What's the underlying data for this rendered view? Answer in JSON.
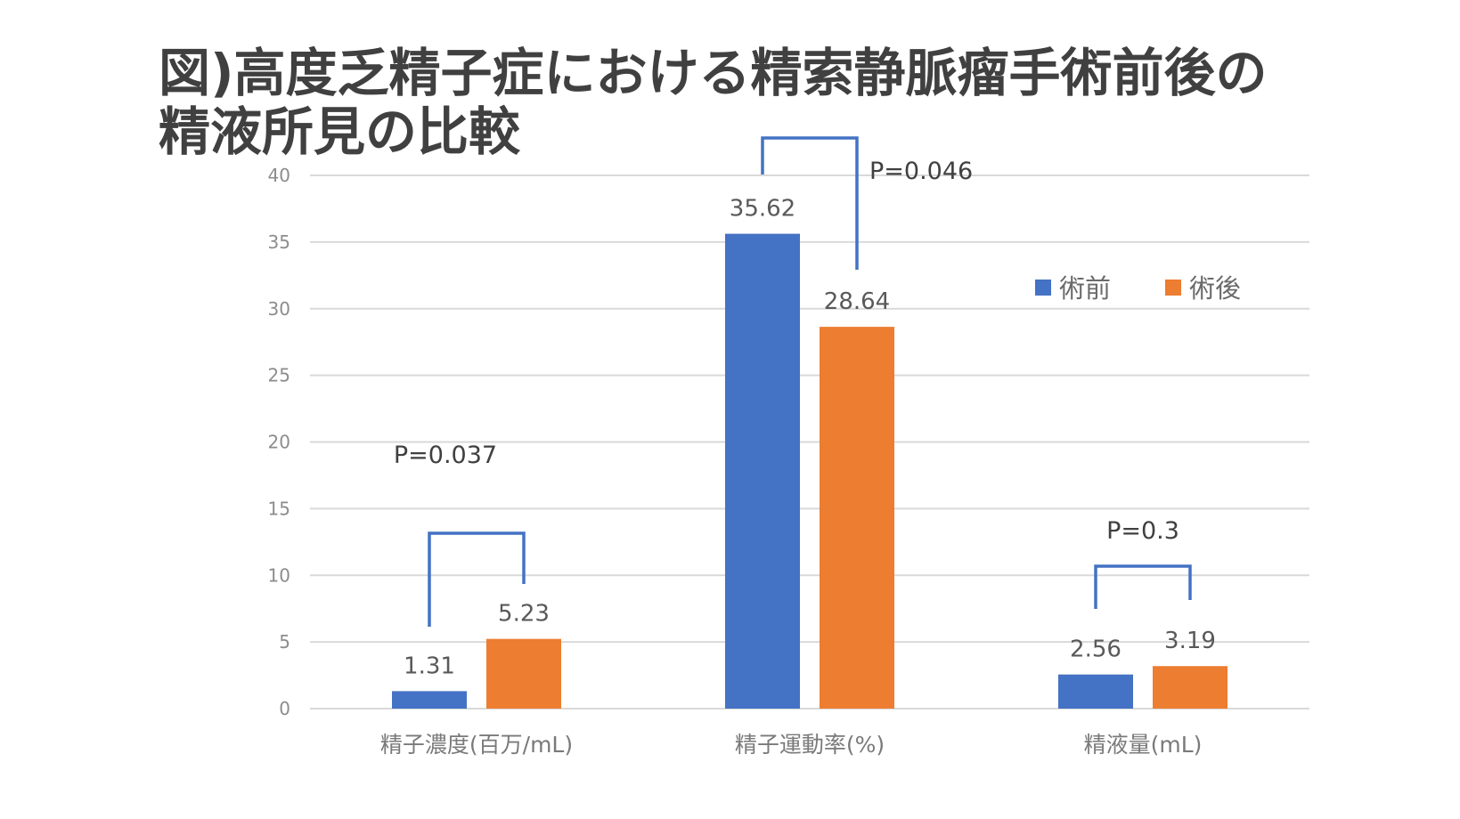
{
  "chart_data": {
    "type": "bar",
    "title_lines": [
      "図)高度乏精子症における精索静脈瘤手術前後の",
      "精液所見の比較"
    ],
    "categories": [
      "精子濃度(百万/mL)",
      "精子運動率(%)",
      "精液量(mL)"
    ],
    "series": [
      {
        "name": "術前",
        "values": [
          1.31,
          35.62,
          2.56
        ],
        "labels": [
          "1.31",
          "35.62",
          "2.56"
        ],
        "color": "#4472C4"
      },
      {
        "name": "術後",
        "values": [
          5.23,
          28.64,
          3.19
        ],
        "labels": [
          "5.23",
          "28.64",
          "3.19"
        ],
        "color": "#ED7D31"
      }
    ],
    "ylim": [
      0,
      40
    ],
    "yticks": [
      0,
      5,
      10,
      15,
      20,
      25,
      30,
      35,
      40
    ],
    "ytick_labels": [
      "0",
      "5",
      "10",
      "15",
      "20",
      "25",
      "30",
      "35",
      "40"
    ],
    "grid": true,
    "legend_position": "top-right",
    "annotations": [
      {
        "text": "P=0.037",
        "category_index": 0
      },
      {
        "text": "P=0.046",
        "category_index": 1
      },
      {
        "text": "P=0.3",
        "category_index": 2
      }
    ],
    "bracket_color": "#4472C4",
    "grid_color": "#d9d9d9"
  }
}
